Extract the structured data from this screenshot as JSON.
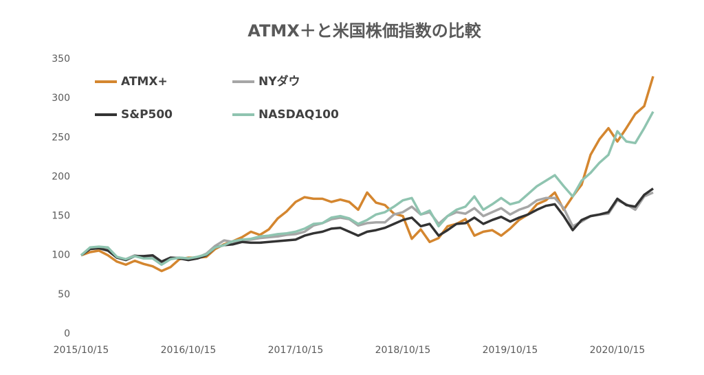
{
  "chart_data": {
    "type": "line",
    "title": "ATMX＋と米国株価指数の比較",
    "categories": [
      "2015/10/15",
      null,
      null,
      null,
      null,
      null,
      null,
      null,
      null,
      null,
      null,
      null,
      "2016/10/15",
      null,
      null,
      null,
      null,
      null,
      null,
      null,
      null,
      null,
      null,
      null,
      "2017/10/15",
      null,
      null,
      null,
      null,
      null,
      null,
      null,
      null,
      null,
      null,
      null,
      "2018/10/15",
      null,
      null,
      null,
      null,
      null,
      null,
      null,
      null,
      null,
      null,
      null,
      "2019/10/15",
      null,
      null,
      null,
      null,
      null,
      null,
      null,
      null,
      null,
      null,
      null,
      "2020/10/15",
      null,
      null,
      null,
      null
    ],
    "series": [
      {
        "name": "ATMX+",
        "color": "#d4862f",
        "values": [
          100,
          104,
          106,
          100,
          92,
          88,
          93,
          89,
          86,
          80,
          85,
          95,
          97,
          97,
          98,
          108,
          114,
          118,
          123,
          130,
          126,
          133,
          147,
          156,
          168,
          174,
          172,
          172,
          168,
          171,
          168,
          158,
          180,
          167,
          164,
          153,
          150,
          121,
          133,
          117,
          122,
          137,
          140,
          146,
          125,
          130,
          132,
          125,
          134,
          145,
          152,
          165,
          170,
          180,
          158,
          175,
          190,
          228,
          248,
          262,
          245,
          262,
          280,
          290,
          328
        ]
      },
      {
        "name": "NYダウ",
        "color": "#a6a6a6",
        "values": [
          100,
          109,
          110,
          108,
          97,
          95,
          100,
          97,
          98,
          90,
          97,
          97,
          96,
          97,
          102,
          112,
          119,
          117,
          119,
          120,
          122,
          123,
          124,
          126,
          127,
          130,
          138,
          141,
          146,
          148,
          146,
          138,
          141,
          142,
          142,
          152,
          155,
          162,
          152,
          155,
          140,
          150,
          155,
          153,
          160,
          150,
          155,
          160,
          152,
          158,
          162,
          170,
          173,
          173,
          160,
          137,
          143,
          150,
          152,
          153,
          170,
          165,
          158,
          175,
          180
        ]
      },
      {
        "name": "S&P500",
        "color": "#333333",
        "values": [
          100,
          108,
          109,
          106,
          97,
          94,
          99,
          99,
          100,
          92,
          97,
          96,
          94,
          96,
          100,
          110,
          113,
          114,
          117,
          116,
          116,
          117,
          118,
          119,
          120,
          125,
          128,
          130,
          134,
          135,
          130,
          125,
          130,
          132,
          135,
          140,
          145,
          148,
          137,
          140,
          125,
          132,
          140,
          141,
          148,
          140,
          145,
          149,
          143,
          148,
          152,
          158,
          163,
          165,
          150,
          132,
          145,
          150,
          152,
          155,
          172,
          164,
          162,
          177,
          185
        ]
      },
      {
        "name": "NASDAQ100",
        "color": "#8fc4b0",
        "values": [
          100,
          110,
          111,
          110,
          98,
          95,
          99,
          96,
          96,
          88,
          95,
          97,
          96,
          98,
          101,
          110,
          113,
          118,
          120,
          121,
          124,
          125,
          127,
          128,
          130,
          134,
          140,
          141,
          148,
          150,
          147,
          140,
          145,
          152,
          155,
          162,
          170,
          173,
          152,
          157,
          137,
          150,
          158,
          162,
          175,
          158,
          165,
          173,
          165,
          168,
          178,
          188,
          195,
          202,
          188,
          175,
          195,
          205,
          218,
          228,
          258,
          245,
          243,
          262,
          283
        ]
      }
    ],
    "ylim": [
      0,
      350
    ],
    "yticks": [
      0,
      50,
      100,
      150,
      200,
      250,
      300,
      350
    ],
    "legend": "top-left"
  }
}
